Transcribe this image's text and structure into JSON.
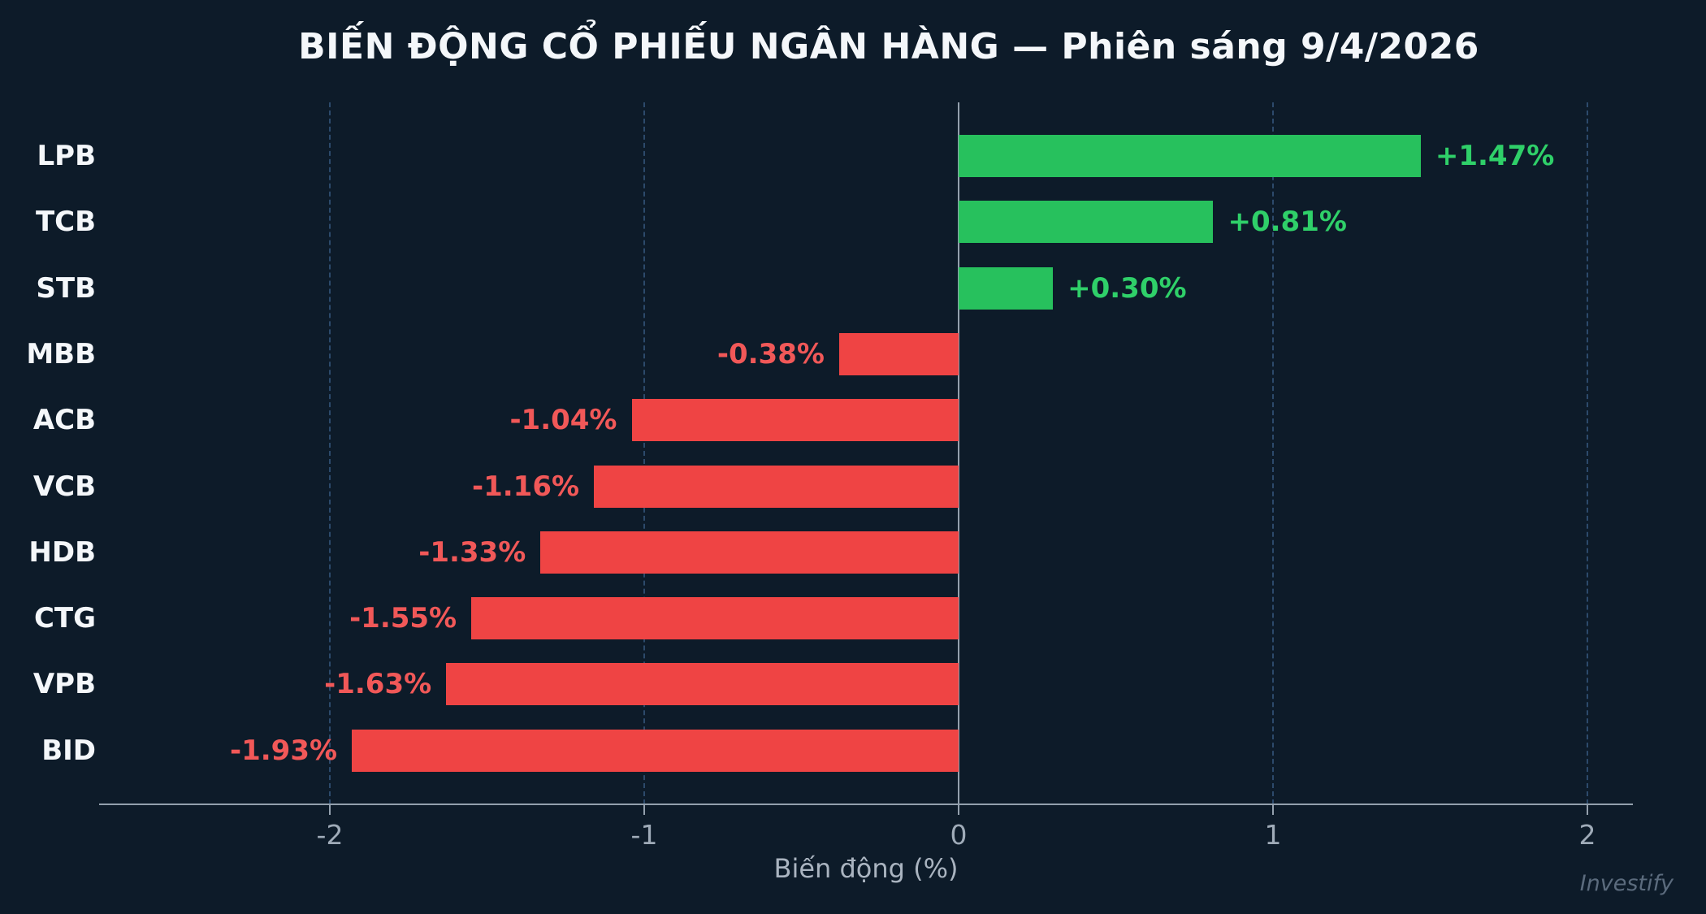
{
  "chart_data": {
    "type": "bar",
    "orientation": "horizontal",
    "title": "BIẾN ĐỘNG CỔ PHIẾU NGÂN HÀNG — Phiên sáng 9/4/2026",
    "xlabel": "Biến động (%)",
    "categories": [
      "LPB",
      "TCB",
      "STB",
      "MBB",
      "ACB",
      "VCB",
      "HDB",
      "CTG",
      "VPB",
      "BID"
    ],
    "values": [
      1.47,
      0.81,
      0.3,
      -0.38,
      -1.04,
      -1.16,
      -1.33,
      -1.55,
      -1.63,
      -1.93
    ],
    "value_labels": [
      "+1.47%",
      "+0.81%",
      "+0.30%",
      "-0.38%",
      "-1.04%",
      "-1.16%",
      "-1.33%",
      "-1.55%",
      "-1.63%",
      "-1.93%"
    ],
    "x_ticks": [
      -2,
      -1,
      0,
      1,
      2
    ],
    "x_tick_labels": [
      "-2",
      "-1",
      "0",
      "1",
      "2"
    ],
    "xlim": [
      -2.73,
      2.15
    ],
    "legend": "none",
    "grid": "vertical dashed gridlines at ticks, solid zero line",
    "watermark": "Investify",
    "colors": {
      "background": "#0d1b29",
      "positive_bar": "#27c15d",
      "negative_bar": "#ef4444",
      "positive_label": "#2fd069",
      "negative_label": "#f15858",
      "title_text": "#f4f7fa",
      "category_text": "#f4f7fa",
      "tick_text": "#9fabb8",
      "axis_line": "#93a0ad",
      "gridline": "#2c4a6b",
      "watermark_text": "#5b6b7d"
    }
  }
}
